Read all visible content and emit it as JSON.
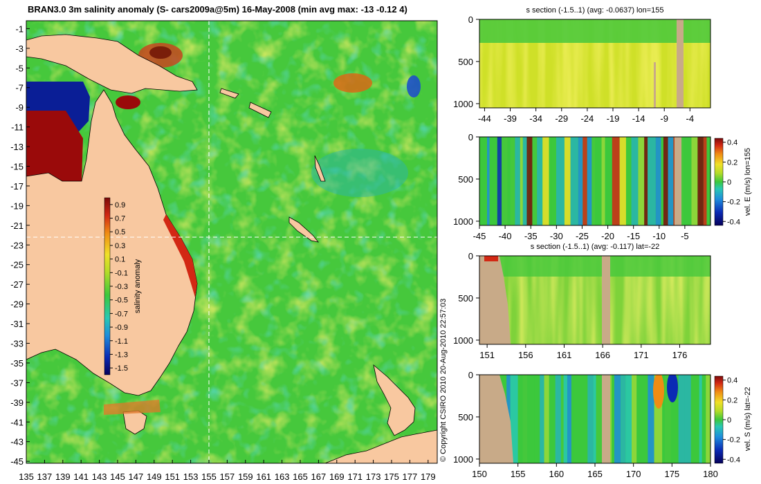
{
  "main_map": {
    "title": "BRAN3.0 3m salinity anomaly (S- cars2009a@5m) 16-May-2008 (min avg max: -13 -0.12 4)",
    "lat_ticks": [
      "-1",
      "-3",
      "-5",
      "-7",
      "-9",
      "-11",
      "-13",
      "-15",
      "-17",
      "-19",
      "-21",
      "-23",
      "-25",
      "-27",
      "-29",
      "-31",
      "-33",
      "-35",
      "-37",
      "-39",
      "-41",
      "-43",
      "-45"
    ],
    "lon_ticks": [
      "135",
      "137",
      "139",
      "141",
      "143",
      "145",
      "147",
      "149",
      "151",
      "153",
      "155",
      "157",
      "159",
      "161",
      "163",
      "165",
      "167",
      "169",
      "171",
      "173",
      "175",
      "177",
      "179"
    ],
    "colorbar_label": "salinity anomaly",
    "colorbar_ticks": [
      "0.9",
      "0.7",
      "0.5",
      "0.3",
      "0.1",
      "-0.1",
      "-0.3",
      "-0.5",
      "-0.7",
      "-0.9",
      "-1.1",
      "-1.3",
      "-1.5"
    ],
    "crosshair": {
      "lon": 155,
      "lat": -22
    },
    "side_text": "© Copyright CSIRO 2010  20-Aug-2010 22:57:03"
  },
  "panel1": {
    "title": "s section (-1.5..1) (avg: -0.0637) lon=155",
    "y_ticks": [
      "0",
      "500",
      "1000"
    ],
    "x_ticks": [
      "-44",
      "-39",
      "-34",
      "-29",
      "-24",
      "-19",
      "-14",
      "-9",
      "-4"
    ]
  },
  "panel2": {
    "y_ticks": [
      "0",
      "500",
      "1000"
    ],
    "x_ticks": [
      "-45",
      "-40",
      "-35",
      "-30",
      "-25",
      "-20",
      "-15",
      "-10",
      "-5"
    ],
    "colorbar_label": "vel. E (m/s) lon=155",
    "colorbar_ticks": [
      "0.4",
      "0.2",
      "0",
      "-0.2",
      "-0.4"
    ]
  },
  "panel3": {
    "title": "s section (-1.5..1) (avg: -0.117) lat=-22",
    "y_ticks": [
      "0",
      "500",
      "1000"
    ],
    "x_ticks": [
      "151",
      "156",
      "161",
      "166",
      "171",
      "176"
    ]
  },
  "panel4": {
    "y_ticks": [
      "0",
      "500",
      "1000"
    ],
    "x_ticks": [
      "150",
      "155",
      "160",
      "165",
      "170",
      "175",
      "180"
    ],
    "colorbar_label": "vel. S (m/s) lat=-22",
    "colorbar_ticks": [
      "0.4",
      "0.2",
      "0",
      "-0.2",
      "-0.4"
    ]
  },
  "chart_data": [
    {
      "type": "heatmap",
      "title": "BRAN3.0 3m salinity anomaly (S- cars2009a@5m) 16-May-2008 (min avg max: -13 -0.12 4)",
      "x_range": [
        135,
        180
      ],
      "y_range": [
        -45,
        0
      ],
      "colorbar_range": [
        -1.5,
        1.0
      ],
      "colorbar_label": "salinity anomaly",
      "stats": {
        "min": -13,
        "avg": -0.12,
        "max": 4
      }
    },
    {
      "type": "heatmap",
      "title": "s section (-1.5..1) (avg: -0.0637) lon=155",
      "x_range": [
        -45,
        0
      ],
      "y_range": [
        1050,
        0
      ],
      "avg": -0.0637
    },
    {
      "type": "heatmap",
      "x_range": [
        -45,
        0
      ],
      "y_range": [
        1050,
        0
      ],
      "colorbar_range": [
        -0.4,
        0.4
      ],
      "colorbar_label": "vel. E (m/s) lon=155"
    },
    {
      "type": "heatmap",
      "title": "s section (-1.5..1) (avg: -0.117) lat=-22",
      "x_range": [
        150,
        180
      ],
      "y_range": [
        1050,
        0
      ],
      "avg": -0.117
    },
    {
      "type": "heatmap",
      "x_range": [
        150,
        180
      ],
      "y_range": [
        1050,
        0
      ],
      "colorbar_range": [
        -0.4,
        0.4
      ],
      "colorbar_label": "vel. S (m/s) lat=-22"
    }
  ],
  "colors": {
    "land": "#f8c8a0",
    "section_land": "#c8aa88",
    "ocean_green": "#3cc83c",
    "ocean_yellowgreen": "#9ad83a",
    "warm": "#f0e028",
    "hot": "#e05a14",
    "max": "#9a0a0a",
    "cool": "#28b4b4",
    "cold": "#0a1e96"
  }
}
